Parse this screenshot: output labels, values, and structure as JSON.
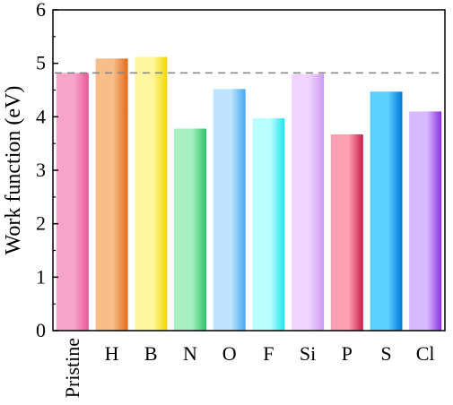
{
  "chart_data": {
    "type": "bar",
    "title": "",
    "xlabel": "",
    "ylabel": "Work function (eV)",
    "ylim": [
      0,
      6
    ],
    "yticks": [
      "0",
      "1",
      "2",
      "3",
      "4",
      "5",
      "6"
    ],
    "categories": [
      "Pristine",
      "H",
      "B",
      "N",
      "O",
      "F",
      "Si",
      "P",
      "S",
      "Cl"
    ],
    "values": [
      4.82,
      5.09,
      5.12,
      3.78,
      4.52,
      3.97,
      4.8,
      3.67,
      4.47,
      4.1
    ],
    "reference_line": {
      "value": 4.82,
      "style": "dashed",
      "color": "#808080"
    },
    "grid": false,
    "legend": "none",
    "bar_colors": [
      [
        "#f7a6c9",
        "#e9569a"
      ],
      [
        "#f8be8a",
        "#e06a1a"
      ],
      [
        "#fff7a0",
        "#f2d600"
      ],
      [
        "#a8f0c0",
        "#2fc46a"
      ],
      [
        "#bfe4ff",
        "#4aa8f0"
      ],
      [
        "#baffff",
        "#22e0e8"
      ],
      [
        "#f0d4ff",
        "#cc9af0"
      ],
      [
        "#ff9fb4",
        "#c81e48"
      ],
      [
        "#5bd0ff",
        "#0078d8"
      ],
      [
        "#d8b8ff",
        "#8a2ee0"
      ]
    ]
  }
}
